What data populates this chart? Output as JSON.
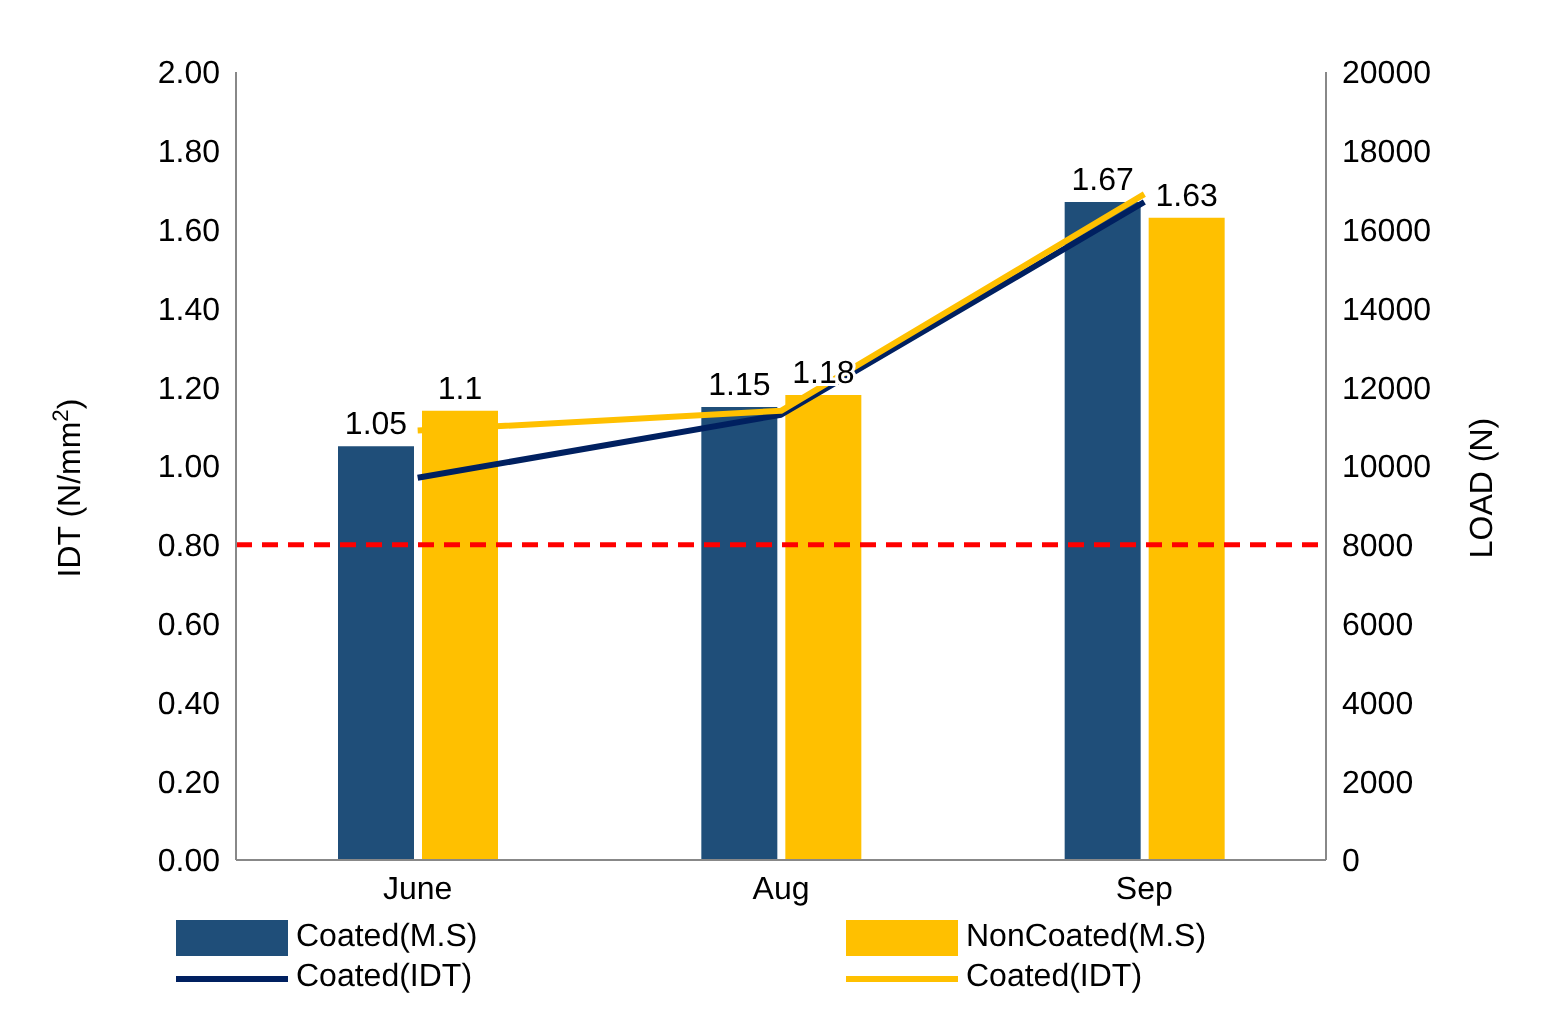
{
  "chart_data": {
    "type": "bar",
    "categories": [
      "June",
      "Aug",
      "Sep"
    ],
    "ylabel": "IDT (N/mm$^{2}$)",
    "y2label": "LOAD (N)",
    "ylim": [
      0,
      2
    ],
    "yticks": [
      {
        "value": 0,
        "label": "0.00"
      },
      {
        "value": 0.2,
        "label": "0.20"
      },
      {
        "value": 0.4,
        "label": "0.40"
      },
      {
        "value": 0.6,
        "label": "0.60"
      },
      {
        "value": 0.8,
        "label": "0.80"
      },
      {
        "value": 1,
        "label": "1.00"
      },
      {
        "value": 1.2,
        "label": "1.20"
      },
      {
        "value": 1.4,
        "label": "1.40"
      },
      {
        "value": 1.6,
        "label": "1.60"
      },
      {
        "value": 1.8,
        "label": "1.80"
      },
      {
        "value": 2,
        "label": "2.00"
      }
    ],
    "y2lim": [
      0,
      20000
    ],
    "y2ticks": [
      0,
      2000,
      4000,
      6000,
      8000,
      10000,
      12000,
      14000,
      16000,
      18000,
      20000
    ],
    "series": [
      {
        "name": "Coated(M.S)",
        "color": "#1f4e79",
        "values": [
          1.05,
          1.15,
          1.67
        ],
        "value_labels": [
          "1.05",
          "1.15",
          "1.67"
        ]
      },
      {
        "name": "NonCoated(M.S)",
        "color": "#ffc000",
        "values": [
          1.14,
          1.18,
          1.63
        ],
        "value_labels": [
          "1.1",
          "1.18",
          "1.63"
        ]
      },
      {
        "name": "Coated(IDT)",
        "type": "line",
        "axis": "y2",
        "color": "#002060",
        "values": [
          9700,
          11300,
          16700
        ]
      },
      {
        "name": "Coated(IDT)",
        "type": "line",
        "axis": "y2",
        "color": "#ffc000",
        "values": [
          10900,
          11400,
          16900
        ]
      }
    ],
    "ref_lines": [
      {
        "axis": "y",
        "value": 0.8,
        "color": "#ff0000",
        "line_style": "dashed"
      }
    ],
    "grid": false,
    "legend": "bottom",
    "marker": "none",
    "line_style": "solid"
  }
}
